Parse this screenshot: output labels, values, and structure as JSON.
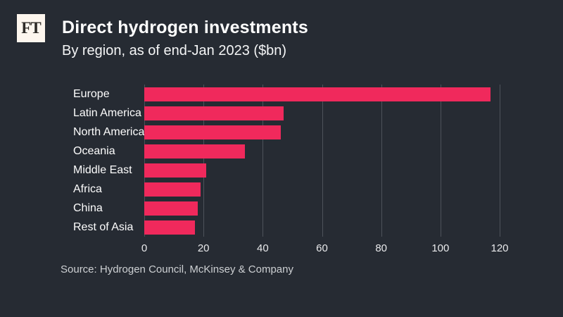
{
  "logo": {
    "text": "FT"
  },
  "header": {
    "title": "Direct hydrogen investments",
    "subtitle": "By region, as of end-Jan 2023 ($bn)"
  },
  "source": "Source: Hydrogen Council, McKinsey & Company",
  "colors": {
    "background": "#262b33",
    "bar": "#f0295c",
    "grid": "#4d525a",
    "text": "#ffffff",
    "muted": "#cdd0d3"
  },
  "chart_data": {
    "type": "bar",
    "orientation": "horizontal",
    "title": "Direct hydrogen investments",
    "subtitle": "By region, as of end-Jan 2023 ($bn)",
    "categories": [
      "Europe",
      "Latin America",
      "North America",
      "Oceania",
      "Middle East",
      "Africa",
      "China",
      "Rest of Asia"
    ],
    "values": [
      117,
      47,
      46,
      34,
      21,
      19,
      18,
      17
    ],
    "xlabel": "",
    "ylabel": "",
    "xlim": [
      0,
      120
    ],
    "xticks": [
      0,
      20,
      40,
      60,
      80,
      100,
      120
    ],
    "grid": true,
    "legend": false,
    "source": "Source: Hydrogen Council, McKinsey & Company"
  }
}
